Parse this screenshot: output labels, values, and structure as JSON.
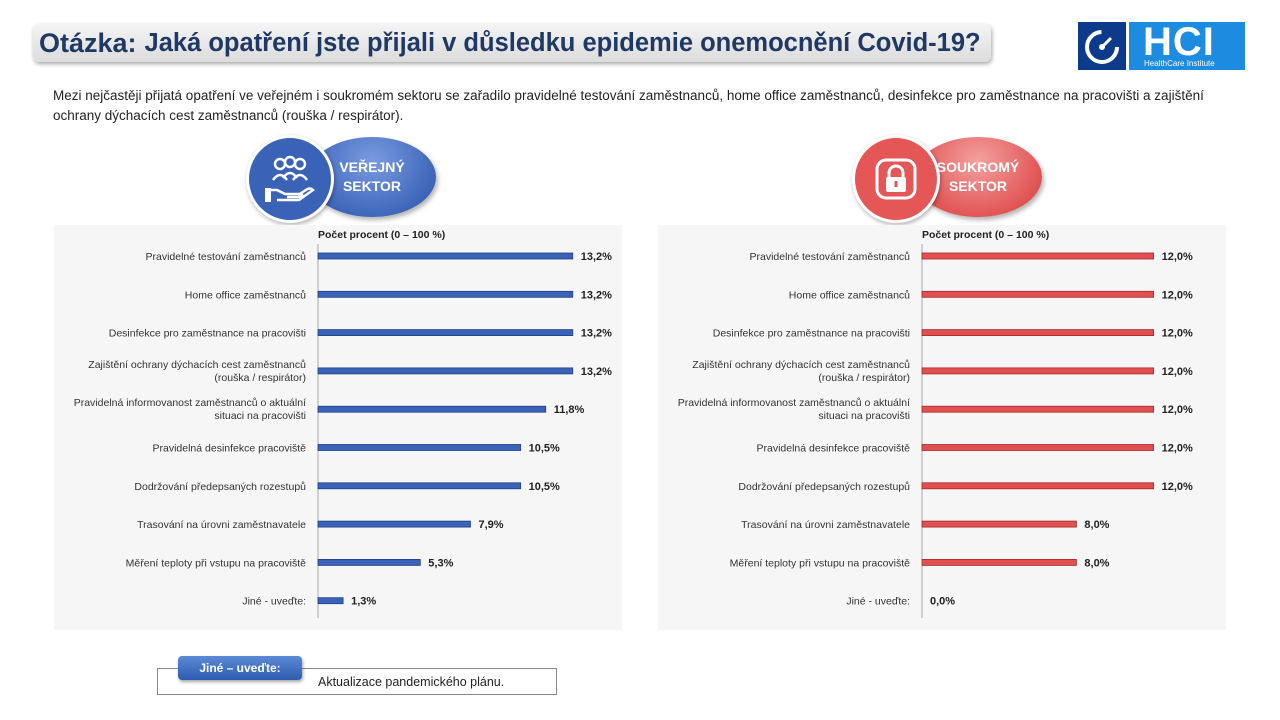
{
  "header": {
    "question_label": "Otázka:",
    "question_text": "Jaká opatření jste přijali v důsledku epidemie onemocnění Covid-19?"
  },
  "logo": {
    "text": "HCI",
    "subtitle": "HealthCare Institute",
    "icon": "gauge-icon"
  },
  "intro": "Mezi nejčastěji přijatá opatření ve veřejném i soukromém sektoru se zařadilo pravidelné testování zaměstnanců, home office zaměstnanců, desinfekce pro zaměstnance na pracovišti a zajištění ochrany dýchacích cest zaměstnanců (rouška / respirátor).",
  "colors": {
    "public": "#3a63b8",
    "private": "#e05050",
    "title": "#1f3864"
  },
  "public_badge": {
    "line1": "VEŘEJNÝ",
    "line2": "SEKTOR",
    "icon": "people-hand-icon"
  },
  "private_badge": {
    "line1": "SOUKROMÝ",
    "line2": "SEKTOR",
    "icon": "lock-icon"
  },
  "note": {
    "tag": "Jiné – uveďte:",
    "text": "Aktualizace pandemického plánu."
  },
  "chart_data": [
    {
      "type": "bar",
      "orientation": "horizontal",
      "header": "Počet procent  (0 – 100 %)",
      "xlim": [
        0,
        100
      ],
      "categories": [
        "Pravidelné testování zaměstnanců",
        "Home office zaměstnanců",
        "Desinfekce pro zaměstnance na pracovišti",
        "Zajištění ochrany dýchacích cest zaměstnanců|(rouška / respirátor)",
        "Pravidelná informovanost zaměstnanců o aktuální|situaci na pracovišti",
        "Pravidelná desinfekce pracoviště",
        "Dodržování předepsaných rozestupů",
        "Trasování na úrovni zaměstnavatele",
        "Měření teploty při vstupu na pracoviště",
        "Jiné - uveďte:"
      ],
      "values": [
        13.2,
        13.2,
        13.2,
        13.2,
        11.8,
        10.5,
        10.5,
        7.9,
        5.3,
        1.3
      ],
      "labels": [
        "13,2%",
        "13,2%",
        "13,2%",
        "13,2%",
        "11,8%",
        "10,5%",
        "10,5%",
        "7,9%",
        "5,3%",
        "1,3%"
      ]
    },
    {
      "type": "bar",
      "orientation": "horizontal",
      "header": "Počet procent  (0 – 100 %)",
      "xlim": [
        0,
        100
      ],
      "categories": [
        "Pravidelné testování zaměstnanců",
        "Home office zaměstnanců",
        "Desinfekce pro zaměstnance na pracovišti",
        "Zajištění ochrany dýchacích cest zaměstnanců|(rouška / respirátor)",
        "Pravidelná informovanost zaměstnanců o aktuální|situaci na pracovišti",
        "Pravidelná desinfekce pracoviště",
        "Dodržování předepsaných rozestupů",
        "Trasování na úrovni zaměstnavatele",
        "Měření teploty při vstupu na pracoviště",
        "Jiné - uveďte:"
      ],
      "values": [
        12.0,
        12.0,
        12.0,
        12.0,
        12.0,
        12.0,
        12.0,
        8.0,
        8.0,
        0.0
      ],
      "labels": [
        "12,0%",
        "12,0%",
        "12,0%",
        "12,0%",
        "12,0%",
        "12,0%",
        "12,0%",
        "8,0%",
        "8,0%",
        "0,0%"
      ]
    }
  ]
}
